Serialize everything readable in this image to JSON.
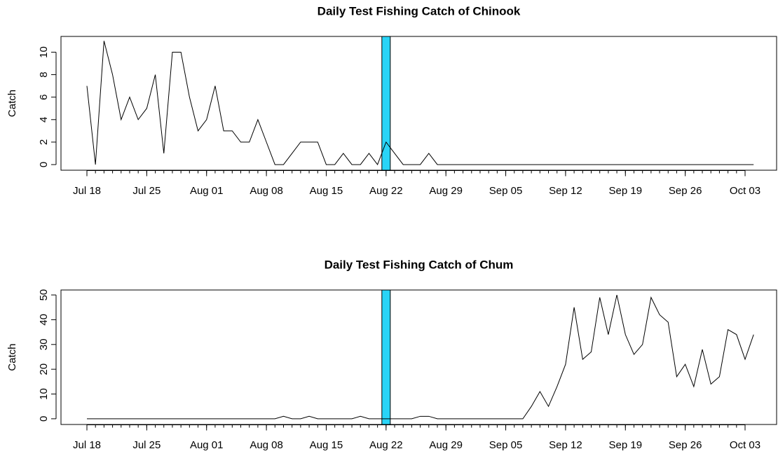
{
  "chart_data": [
    {
      "type": "line",
      "title": "Daily Test Fishing Catch of Chinook",
      "y_label": "Catch",
      "color": "#000000",
      "x": [
        "Jul 18",
        "Jul 19",
        "Jul 20",
        "Jul 21",
        "Jul 22",
        "Jul 23",
        "Jul 24",
        "Jul 25",
        "Jul 26",
        "Jul 27",
        "Jul 28",
        "Jul 29",
        "Jul 30",
        "Jul 31",
        "Aug 01",
        "Aug 02",
        "Aug 03",
        "Aug 04",
        "Aug 05",
        "Aug 06",
        "Aug 07",
        "Aug 08",
        "Aug 09",
        "Aug 10",
        "Aug 11",
        "Aug 12",
        "Aug 13",
        "Aug 14",
        "Aug 15",
        "Aug 16",
        "Aug 17",
        "Aug 18",
        "Aug 19",
        "Aug 20",
        "Aug 21",
        "Aug 22",
        "Aug 23",
        "Aug 24",
        "Aug 25",
        "Aug 26",
        "Aug 27",
        "Aug 28",
        "Aug 29",
        "Aug 30",
        "Aug 31",
        "Sep 01",
        "Sep 02",
        "Sep 03",
        "Sep 04",
        "Sep 05",
        "Sep 06",
        "Sep 07",
        "Sep 08",
        "Sep 09",
        "Sep 10",
        "Sep 11",
        "Sep 12",
        "Sep 13",
        "Sep 14",
        "Sep 15",
        "Sep 16",
        "Sep 17",
        "Sep 18",
        "Sep 19",
        "Sep 20",
        "Sep 21",
        "Sep 22",
        "Sep 23",
        "Sep 24",
        "Sep 25",
        "Sep 26",
        "Sep 27",
        "Sep 28",
        "Sep 29",
        "Sep 30",
        "Oct 01",
        "Oct 02",
        "Oct 03",
        "Oct 04"
      ],
      "values": [
        7,
        0,
        11,
        8,
        4,
        6,
        4,
        5,
        8,
        1,
        10,
        10,
        6,
        3,
        4,
        7,
        3,
        3,
        2,
        2,
        4,
        2,
        0,
        0,
        1,
        2,
        2,
        2,
        0,
        0,
        1,
        0,
        0,
        1,
        0,
        2,
        1,
        0,
        0,
        0,
        1,
        0,
        0,
        0,
        0,
        0,
        0,
        0,
        0,
        0,
        0,
        0,
        0,
        0,
        0,
        0,
        0,
        0,
        0,
        0,
        0,
        0,
        0,
        0,
        0,
        0,
        0,
        0,
        0,
        0,
        0,
        0,
        0,
        0,
        0,
        0,
        0,
        0,
        0
      ],
      "xticks": [
        "Jul 18",
        "Jul 25",
        "Aug 01",
        "Aug 08",
        "Aug 15",
        "Aug 22",
        "Aug 29",
        "Sep 05",
        "Sep 12",
        "Sep 19",
        "Sep 26",
        "Oct 03"
      ],
      "ylim": [
        -0.5,
        11.4
      ],
      "yticks": [
        0,
        2,
        4,
        6,
        8,
        10
      ],
      "highlight_x": "Aug 22",
      "highlight_color": "#29d4f7"
    },
    {
      "type": "line",
      "title": "Daily Test Fishing Catch of Chum",
      "y_label": "Catch",
      "color": "#000000",
      "x": [
        "Jul 18",
        "Jul 19",
        "Jul 20",
        "Jul 21",
        "Jul 22",
        "Jul 23",
        "Jul 24",
        "Jul 25",
        "Jul 26",
        "Jul 27",
        "Jul 28",
        "Jul 29",
        "Jul 30",
        "Jul 31",
        "Aug 01",
        "Aug 02",
        "Aug 03",
        "Aug 04",
        "Aug 05",
        "Aug 06",
        "Aug 07",
        "Aug 08",
        "Aug 09",
        "Aug 10",
        "Aug 11",
        "Aug 12",
        "Aug 13",
        "Aug 14",
        "Aug 15",
        "Aug 16",
        "Aug 17",
        "Aug 18",
        "Aug 19",
        "Aug 20",
        "Aug 21",
        "Aug 22",
        "Aug 23",
        "Aug 24",
        "Aug 25",
        "Aug 26",
        "Aug 27",
        "Aug 28",
        "Aug 29",
        "Aug 30",
        "Aug 31",
        "Sep 01",
        "Sep 02",
        "Sep 03",
        "Sep 04",
        "Sep 05",
        "Sep 06",
        "Sep 07",
        "Sep 08",
        "Sep 09",
        "Sep 10",
        "Sep 11",
        "Sep 12",
        "Sep 13",
        "Sep 14",
        "Sep 15",
        "Sep 16",
        "Sep 17",
        "Sep 18",
        "Sep 19",
        "Sep 20",
        "Sep 21",
        "Sep 22",
        "Sep 23",
        "Sep 24",
        "Sep 25",
        "Sep 26",
        "Sep 27",
        "Sep 28",
        "Sep 29",
        "Sep 30",
        "Oct 01",
        "Oct 02",
        "Oct 03",
        "Oct 04"
      ],
      "values": [
        0,
        0,
        0,
        0,
        0,
        0,
        0,
        0,
        0,
        0,
        0,
        0,
        0,
        0,
        0,
        0,
        0,
        0,
        0,
        0,
        0,
        0,
        0,
        1,
        0,
        0,
        1,
        0,
        0,
        0,
        0,
        0,
        1,
        0,
        0,
        0,
        0,
        0,
        0,
        1,
        1,
        0,
        0,
        0,
        0,
        0,
        0,
        0,
        0,
        0,
        0,
        0,
        5,
        11,
        5,
        13,
        22,
        45,
        24,
        27,
        49,
        34,
        50,
        34,
        26,
        30,
        49,
        42,
        39,
        17,
        22,
        13,
        28,
        14,
        17,
        36,
        34,
        24,
        34
      ],
      "xticks": [
        "Jul 18",
        "Jul 25",
        "Aug 01",
        "Aug 08",
        "Aug 15",
        "Aug 22",
        "Aug 29",
        "Sep 05",
        "Sep 12",
        "Sep 19",
        "Sep 26",
        "Oct 03"
      ],
      "ylim": [
        -2.3,
        52
      ],
      "yticks": [
        0,
        10,
        20,
        30,
        40,
        50
      ],
      "highlight_x": "Aug 22",
      "highlight_color": "#29d4f7"
    }
  ]
}
